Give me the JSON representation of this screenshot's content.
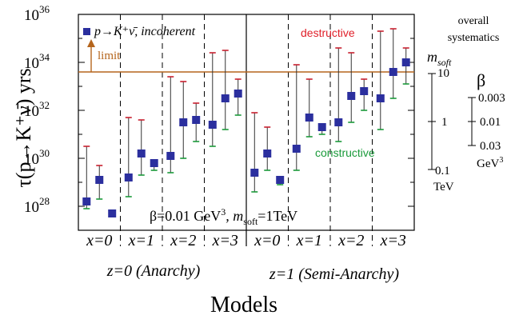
{
  "chart_data": {
    "type": "scatter",
    "ylabel": "τ(p→K⁺ν̄) yrs",
    "xlabel": "Models",
    "y_scale": "log10",
    "ylim_exp": [
      27,
      36
    ],
    "y_ticks": [
      {
        "exp": 28,
        "base": "10",
        "sup": "28"
      },
      {
        "exp": 30,
        "base": "10",
        "sup": "30"
      },
      {
        "exp": 32,
        "base": "10",
        "sup": "32"
      },
      {
        "exp": 34,
        "base": "10",
        "sup": "34"
      },
      {
        "exp": 36,
        "base": "10",
        "sup": "36"
      }
    ],
    "legend": {
      "marker_label": "p→K⁺ν̄, incoherent",
      "position": "top-left"
    },
    "limit": {
      "label": "limit",
      "value_exp": 33.6,
      "color": "#b5651d"
    },
    "annotations": {
      "destructive": {
        "text": "destructive",
        "color": "#e0202a"
      },
      "constructive": {
        "text": "constructive",
        "color": "#1a9a3a"
      },
      "benchmark": {
        "pre": "β=0.01 GeV",
        "sup": "3",
        "mid": ", m",
        "sub": "soft",
        "post": "=1TeV"
      }
    },
    "x_groups": [
      {
        "label": "x=0"
      },
      {
        "label": "x=1"
      },
      {
        "label": "x=2"
      },
      {
        "label": "x=3"
      },
      {
        "label": "x=0"
      },
      {
        "label": "x=1"
      },
      {
        "label": "x=2"
      },
      {
        "label": "x=3"
      }
    ],
    "z_groups": [
      {
        "label": "z=0 (Anarchy)"
      },
      {
        "label": "z=1 (Semi-Anarchy)"
      }
    ],
    "series": [
      {
        "name": "p→K⁺ν̄, incoherent",
        "marker_color": "#2b2f9e",
        "upper_color": "#c8202f",
        "lower_color": "#1a9a3a",
        "points": [
          {
            "center": 28.2,
            "upper": 30.5,
            "lower": 27.9
          },
          {
            "center": 29.1,
            "upper": 29.7,
            "lower": 28.3
          },
          {
            "center": 27.7,
            "upper": 27.7,
            "lower": 27.6
          },
          {
            "center": 29.2,
            "upper": 31.7,
            "lower": 28.4
          },
          {
            "center": 30.2,
            "upper": 31.6,
            "lower": 29.3
          },
          {
            "center": 29.8,
            "upper": 29.9,
            "lower": 29.5
          },
          {
            "center": 30.1,
            "upper": 33.4,
            "lower": 29.4
          },
          {
            "center": 31.5,
            "upper": 33.2,
            "lower": 30.0
          },
          {
            "center": 31.6,
            "upper": 32.3,
            "lower": 30.7
          },
          {
            "center": 31.4,
            "upper": 34.4,
            "lower": 30.5
          },
          {
            "center": 32.5,
            "upper": 34.5,
            "lower": 31.2
          },
          {
            "center": 32.7,
            "upper": 33.3,
            "lower": 31.8
          },
          {
            "center": 29.4,
            "upper": 31.9,
            "lower": 28.6
          },
          {
            "center": 30.2,
            "upper": 31.3,
            "lower": 29.5
          },
          {
            "center": 29.1,
            "upper": 29.2,
            "lower": 28.9
          },
          {
            "center": 30.4,
            "upper": 33.9,
            "lower": 29.5
          },
          {
            "center": 31.7,
            "upper": 33.3,
            "lower": 30.9
          },
          {
            "center": 31.3,
            "upper": 31.4,
            "lower": 31.0
          },
          {
            "center": 31.5,
            "upper": 34.6,
            "lower": 30.7
          },
          {
            "center": 32.6,
            "upper": 34.4,
            "lower": 31.5
          },
          {
            "center": 32.8,
            "upper": 33.3,
            "lower": 32.0
          },
          {
            "center": 32.5,
            "upper": 35.3,
            "lower": 31.2
          },
          {
            "center": 33.6,
            "upper": 35.4,
            "lower": 32.5
          },
          {
            "center": 34.0,
            "upper": 34.6,
            "lower": 33.1
          }
        ]
      }
    ]
  },
  "right_panel": {
    "overall_line1": "overall",
    "overall_line2": "systematics",
    "msoft_label": "m",
    "msoft_sub": "soft",
    "msoft_ticks": [
      "10",
      "1",
      "0.1"
    ],
    "msoft_unit": "TeV",
    "beta_label": "β",
    "beta_ticks": [
      "0.003",
      "0.01",
      "0.03"
    ],
    "beta_unit": "GeV",
    "beta_unit_sup": "3"
  }
}
